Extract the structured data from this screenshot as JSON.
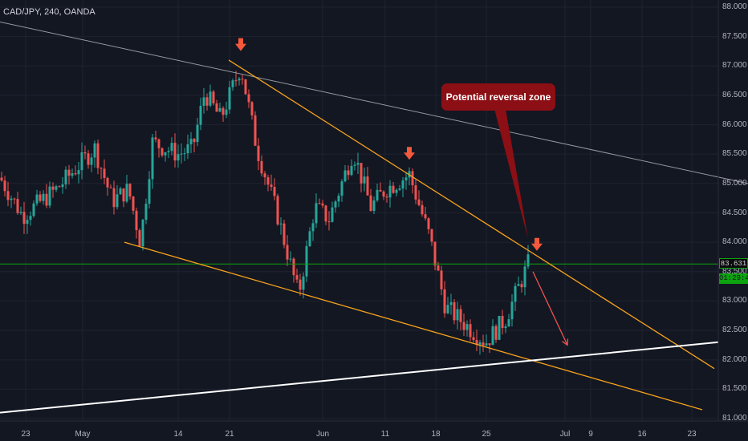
{
  "header": {
    "symbol_title": "CAD/JPY, 240, OANDA"
  },
  "price_scale": {
    "labels": [
      "88.000",
      "87.500",
      "87.000",
      "86.500",
      "86.000",
      "85.500",
      "85.000",
      "84.500",
      "84.000",
      "83.500",
      "83.000",
      "82.500",
      "82.000",
      "81.500",
      "81.000"
    ],
    "current_price": "83.631",
    "countdown": "01:29:49"
  },
  "time_scale": {
    "labels": [
      "23",
      "May",
      "14",
      "21",
      "Jun",
      "11",
      "18",
      "25",
      "Jul",
      "9",
      "16",
      "23"
    ]
  },
  "annotations": {
    "callout_text": "Potential reversal zone"
  },
  "colors": {
    "background": "#131722",
    "candle_up": "#26a69a",
    "candle_down": "#ef5350",
    "trendline_orange": "#f7a21b",
    "arrow_marker": "#f4593c",
    "callout_bg": "#8b0f14",
    "current_price_line": "#0ca30f",
    "support_line": "#ffffff",
    "upper_channel_line": "#9598a1"
  },
  "chart_data": {
    "type": "candlestick",
    "symbol": "CAD/JPY",
    "interval": "240",
    "source": "OANDA",
    "y_axis": {
      "min": 81.0,
      "max": 88.0
    },
    "close_path": [
      [
        "Apr 19",
        85.1
      ],
      [
        "Apr 23",
        84.45
      ],
      [
        "Apr 26",
        84.9
      ],
      [
        "Apr 30",
        85.6
      ],
      [
        "May 2",
        84.7
      ],
      [
        "May 4",
        84.9
      ],
      [
        "May 8",
        84.0
      ],
      [
        "May 11",
        85.7
      ],
      [
        "May 14",
        85.5
      ],
      [
        "May 16",
        85.6
      ],
      [
        "May 18",
        86.55
      ],
      [
        "May 20",
        86.1
      ],
      [
        "May 22",
        87.0
      ],
      [
        "May 25",
        85.6
      ],
      [
        "May 28",
        84.5
      ],
      [
        "May 31",
        83.1
      ],
      [
        "Jun 2",
        84.6
      ],
      [
        "Jun 5",
        84.4
      ],
      [
        "Jun 7",
        85.55
      ],
      [
        "Jun 9",
        84.6
      ],
      [
        "Jun 11",
        84.9
      ],
      [
        "Jun 14",
        85.15
      ],
      [
        "Jun 17",
        84.1
      ],
      [
        "Jun 20",
        82.9
      ],
      [
        "Jun 24",
        82.6
      ],
      [
        "Jun 26",
        82.3
      ],
      [
        "Jun 28",
        82.7
      ],
      [
        "Jun 29",
        83.63
      ]
    ],
    "lines": [
      {
        "name": "upper-channel",
        "from": [
          0,
          87.75
        ],
        "to": [
          932,
          85.0
        ]
      },
      {
        "name": "descending-resistance",
        "from": [
          285,
          87.1
        ],
        "to": [
          890,
          81.85
        ]
      },
      {
        "name": "descending-support",
        "from": [
          155,
          84.0
        ],
        "to": [
          875,
          81.15
        ]
      },
      {
        "name": "rising-support",
        "from": [
          0,
          81.1
        ],
        "to": [
          895,
          82.3
        ]
      }
    ],
    "markers": [
      {
        "type": "arrow-down",
        "at": [
          300,
          87.35
        ]
      },
      {
        "type": "arrow-down",
        "at": [
          510,
          85.5
        ]
      },
      {
        "type": "arrow-down",
        "at": [
          669,
          83.95
        ]
      }
    ],
    "projection_arrow": {
      "from": [
        664,
        83.5
      ],
      "to": [
        707,
        82.25
      ]
    }
  }
}
